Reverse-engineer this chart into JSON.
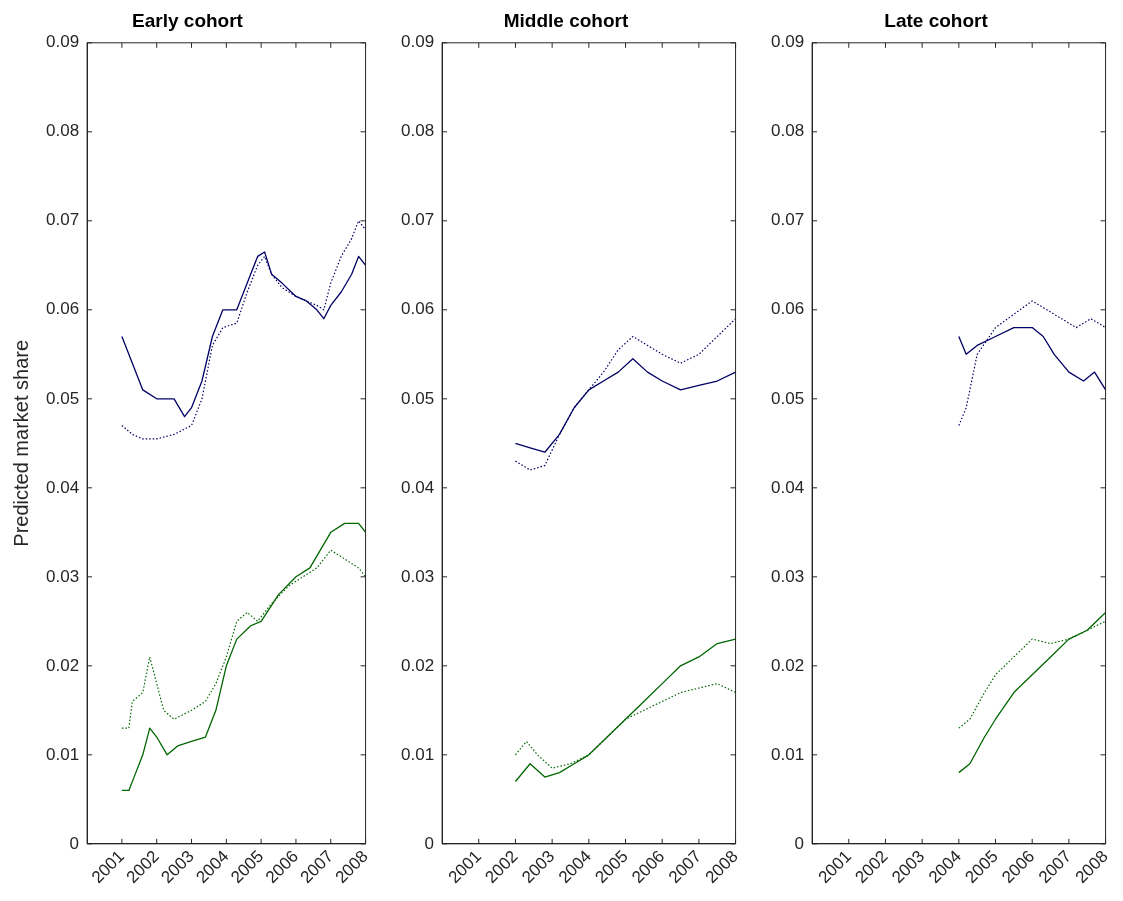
{
  "chart_data": [
    {
      "type": "line",
      "title": "Early cohort",
      "ylabel": "Predicted market share",
      "xlim": [
        2000,
        2008
      ],
      "xticks": [
        2001,
        2002,
        2003,
        2004,
        2005,
        2006,
        2007,
        2008
      ],
      "ylim": [
        0,
        0.09
      ],
      "yticks": [
        0,
        0.01,
        0.02,
        0.03,
        0.04,
        0.05,
        0.06,
        0.07,
        0.08,
        0.09
      ],
      "legend": false,
      "marker": "none",
      "series": [
        {
          "color": "#000066",
          "line_style": "solid",
          "x": [
            2001,
            2001.3,
            2001.6,
            2002,
            2002.5,
            2002.8,
            2003,
            2003.3,
            2003.6,
            2003.9,
            2004.3,
            2004.6,
            2004.9,
            2005.1,
            2005.3,
            2005.6,
            2006,
            2006.3,
            2006.6,
            2006.8,
            2007,
            2007.3,
            2007.6,
            2007.8,
            2008
          ],
          "values": [
            0.057,
            0.054,
            0.051,
            0.05,
            0.05,
            0.048,
            0.049,
            0.052,
            0.057,
            0.06,
            0.06,
            0.063,
            0.066,
            0.0665,
            0.064,
            0.063,
            0.0615,
            0.061,
            0.06,
            0.059,
            0.0605,
            0.062,
            0.064,
            0.066,
            0.065
          ]
        },
        {
          "color": "#000066",
          "line_style": "dotted",
          "x": [
            2001,
            2001.3,
            2001.6,
            2002,
            2002.5,
            2003,
            2003.3,
            2003.6,
            2003.9,
            2004.3,
            2004.6,
            2004.9,
            2005.1,
            2005.3,
            2005.6,
            2006,
            2006.3,
            2006.6,
            2006.8,
            2007,
            2007.3,
            2007.6,
            2007.8,
            2008
          ],
          "values": [
            0.047,
            0.046,
            0.0455,
            0.0455,
            0.046,
            0.047,
            0.05,
            0.056,
            0.058,
            0.0585,
            0.062,
            0.065,
            0.066,
            0.064,
            0.0625,
            0.0615,
            0.061,
            0.0605,
            0.06,
            0.063,
            0.066,
            0.068,
            0.07,
            0.069
          ]
        },
        {
          "color": "#006600",
          "line_style": "solid",
          "x": [
            2001,
            2001.2,
            2001.4,
            2001.6,
            2001.8,
            2002,
            2002.3,
            2002.6,
            2003,
            2003.4,
            2003.7,
            2004,
            2004.3,
            2004.7,
            2005,
            2005.5,
            2006,
            2006.4,
            2006.7,
            2007,
            2007.4,
            2007.8,
            2008
          ],
          "values": [
            0.006,
            0.006,
            0.008,
            0.01,
            0.013,
            0.012,
            0.01,
            0.011,
            0.0115,
            0.012,
            0.015,
            0.02,
            0.023,
            0.0245,
            0.025,
            0.028,
            0.03,
            0.031,
            0.033,
            0.035,
            0.036,
            0.036,
            0.035
          ]
        },
        {
          "color": "#006600",
          "line_style": "dotted",
          "x": [
            2001,
            2001.2,
            2001.3,
            2001.6,
            2001.8,
            2002,
            2002.2,
            2002.5,
            2003,
            2003.4,
            2003.7,
            2004,
            2004.3,
            2004.6,
            2004.9,
            2005.3,
            2005.8,
            2006.2,
            2006.6,
            2007,
            2007.4,
            2007.8,
            2008
          ],
          "values": [
            0.013,
            0.013,
            0.016,
            0.017,
            0.021,
            0.018,
            0.015,
            0.014,
            0.015,
            0.016,
            0.018,
            0.021,
            0.025,
            0.026,
            0.025,
            0.027,
            0.029,
            0.03,
            0.031,
            0.033,
            0.032,
            0.031,
            0.03
          ]
        }
      ]
    },
    {
      "type": "line",
      "title": "Middle cohort",
      "xlim": [
        2000,
        2008
      ],
      "xticks": [
        2001,
        2002,
        2003,
        2004,
        2005,
        2006,
        2007,
        2008
      ],
      "ylim": [
        0,
        0.09
      ],
      "yticks": [
        0,
        0.01,
        0.02,
        0.03,
        0.04,
        0.05,
        0.06,
        0.07,
        0.08,
        0.09
      ],
      "legend": false,
      "marker": "none",
      "series": [
        {
          "color": "#000066",
          "line_style": "solid",
          "x": [
            2002,
            2002.4,
            2002.8,
            2003.2,
            2003.6,
            2004,
            2004.4,
            2004.8,
            2005.2,
            2005.6,
            2006,
            2006.5,
            2007,
            2007.5,
            2008
          ],
          "values": [
            0.045,
            0.0445,
            0.044,
            0.046,
            0.049,
            0.051,
            0.052,
            0.053,
            0.0545,
            0.053,
            0.052,
            0.051,
            0.0515,
            0.052,
            0.053
          ]
        },
        {
          "color": "#000066",
          "line_style": "dotted",
          "x": [
            2002,
            2002.4,
            2002.8,
            2003.2,
            2003.6,
            2004,
            2004.4,
            2004.8,
            2005.2,
            2005.6,
            2006,
            2006.5,
            2007,
            2007.5,
            2008
          ],
          "values": [
            0.043,
            0.042,
            0.0425,
            0.046,
            0.049,
            0.051,
            0.053,
            0.0555,
            0.057,
            0.056,
            0.055,
            0.054,
            0.055,
            0.057,
            0.059
          ]
        },
        {
          "color": "#006600",
          "line_style": "solid",
          "x": [
            2002,
            2002.4,
            2002.8,
            2003.2,
            2003.6,
            2004,
            2004.5,
            2005,
            2005.5,
            2006,
            2006.5,
            2007,
            2007.5,
            2008
          ],
          "values": [
            0.007,
            0.009,
            0.0075,
            0.008,
            0.009,
            0.01,
            0.012,
            0.014,
            0.016,
            0.018,
            0.02,
            0.021,
            0.0225,
            0.023
          ]
        },
        {
          "color": "#006600",
          "line_style": "dotted",
          "x": [
            2002,
            2002.3,
            2002.6,
            2003,
            2003.5,
            2004,
            2004.5,
            2005,
            2005.5,
            2006,
            2006.5,
            2007,
            2007.5,
            2008
          ],
          "values": [
            0.01,
            0.0115,
            0.01,
            0.0085,
            0.009,
            0.01,
            0.012,
            0.014,
            0.015,
            0.016,
            0.017,
            0.0175,
            0.018,
            0.017
          ]
        }
      ]
    },
    {
      "type": "line",
      "title": "Late cohort",
      "xlim": [
        2000,
        2008
      ],
      "xticks": [
        2001,
        2002,
        2003,
        2004,
        2005,
        2006,
        2007,
        2008
      ],
      "ylim": [
        0,
        0.09
      ],
      "yticks": [
        0,
        0.01,
        0.02,
        0.03,
        0.04,
        0.05,
        0.06,
        0.07,
        0.08,
        0.09
      ],
      "legend": false,
      "marker": "none",
      "series": [
        {
          "color": "#000066",
          "line_style": "solid",
          "x": [
            2004,
            2004.2,
            2004.5,
            2005,
            2005.5,
            2006,
            2006.3,
            2006.6,
            2007,
            2007.4,
            2007.7,
            2008
          ],
          "values": [
            0.057,
            0.055,
            0.056,
            0.057,
            0.058,
            0.058,
            0.057,
            0.055,
            0.053,
            0.052,
            0.053,
            0.051
          ]
        },
        {
          "color": "#000066",
          "line_style": "dotted",
          "x": [
            2004,
            2004.2,
            2004.5,
            2005,
            2005.5,
            2006,
            2006.4,
            2006.8,
            2007.2,
            2007.6,
            2008
          ],
          "values": [
            0.047,
            0.049,
            0.055,
            0.058,
            0.0595,
            0.061,
            0.06,
            0.059,
            0.058,
            0.059,
            0.058
          ]
        },
        {
          "color": "#006600",
          "line_style": "solid",
          "x": [
            2004,
            2004.3,
            2004.7,
            2005,
            2005.5,
            2006,
            2006.5,
            2007,
            2007.5,
            2008
          ],
          "values": [
            0.008,
            0.009,
            0.012,
            0.014,
            0.017,
            0.019,
            0.021,
            0.023,
            0.024,
            0.026
          ]
        },
        {
          "color": "#006600",
          "line_style": "dotted",
          "x": [
            2004,
            2004.3,
            2004.7,
            2005,
            2005.5,
            2006,
            2006.5,
            2007,
            2007.5,
            2008
          ],
          "values": [
            0.013,
            0.014,
            0.017,
            0.019,
            0.021,
            0.023,
            0.0225,
            0.023,
            0.024,
            0.025
          ]
        }
      ]
    }
  ]
}
